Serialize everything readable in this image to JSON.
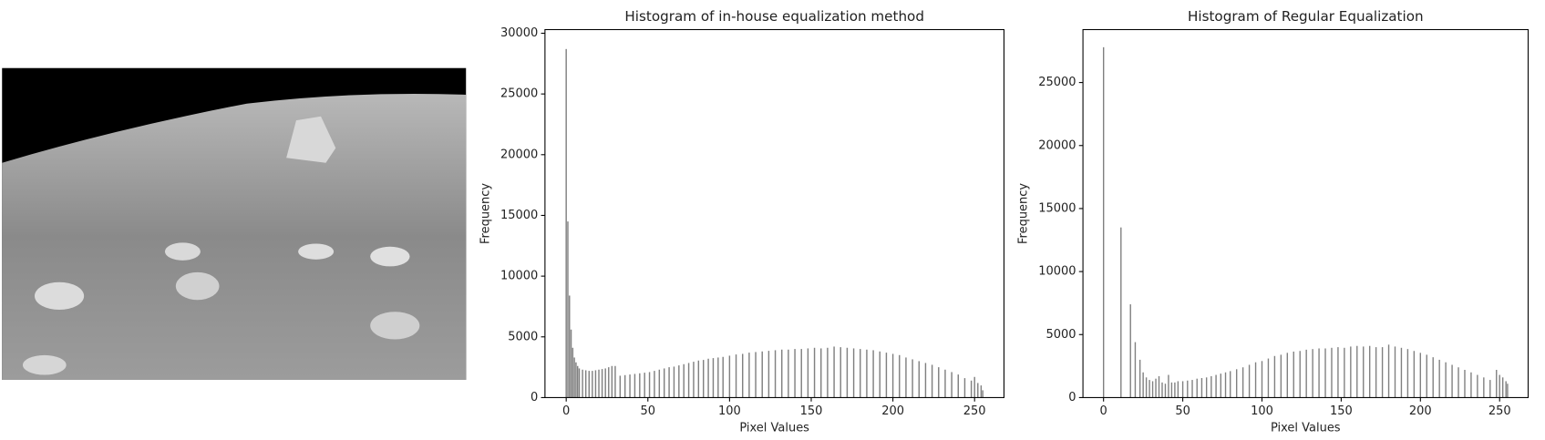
{
  "chart_data": [
    {
      "type": "bar",
      "title": "Histogram of in-house equalization method",
      "x_label": "Pixel Values",
      "y_label": "Frequency",
      "color": "#808080",
      "x": [
        0,
        1,
        2,
        3,
        4,
        5,
        6,
        7,
        8,
        10,
        12,
        14,
        16,
        18,
        20,
        22,
        24,
        26,
        28,
        30,
        33,
        36,
        39,
        42,
        45,
        48,
        51,
        54,
        57,
        60,
        63,
        66,
        69,
        72,
        75,
        78,
        81,
        84,
        87,
        90,
        93,
        96,
        100,
        104,
        108,
        112,
        116,
        120,
        124,
        128,
        132,
        136,
        140,
        144,
        148,
        152,
        156,
        160,
        164,
        168,
        172,
        176,
        180,
        184,
        188,
        192,
        196,
        200,
        204,
        208,
        212,
        216,
        220,
        224,
        228,
        232,
        236,
        240,
        244,
        248,
        250,
        252,
        254,
        255
      ],
      "values": [
        28700,
        14500,
        8400,
        5600,
        4100,
        3300,
        2900,
        2600,
        2400,
        2300,
        2250,
        2200,
        2200,
        2250,
        2300,
        2350,
        2400,
        2500,
        2600,
        2600,
        1800,
        1850,
        1900,
        1950,
        2000,
        2050,
        2100,
        2200,
        2300,
        2400,
        2500,
        2550,
        2650,
        2750,
        2850,
        2950,
        3050,
        3100,
        3200,
        3250,
        3300,
        3350,
        3450,
        3550,
        3600,
        3700,
        3750,
        3800,
        3850,
        3900,
        3950,
        3950,
        4000,
        4000,
        4050,
        4100,
        4050,
        4100,
        4200,
        4150,
        4100,
        4050,
        4000,
        3950,
        3900,
        3800,
        3700,
        3600,
        3500,
        3300,
        3150,
        3000,
        2850,
        2700,
        2500,
        2300,
        2100,
        1900,
        1600,
        1400,
        1700,
        1200,
        1000,
        600
      ],
      "xlim": [
        -13,
        268
      ],
      "ylim": [
        0,
        30300
      ],
      "xticks": [
        0,
        50,
        100,
        150,
        200,
        250
      ],
      "yticks": [
        0,
        5000,
        10000,
        15000,
        20000,
        25000,
        30000
      ]
    },
    {
      "type": "bar",
      "title": "Histogram of Regular Equalization",
      "x_label": "Pixel Values",
      "y_label": "Frequency",
      "color": "#808080",
      "x": [
        0,
        11,
        17,
        20,
        23,
        25,
        27,
        29,
        31,
        33,
        35,
        37,
        39,
        41,
        43,
        45,
        47,
        50,
        53,
        56,
        59,
        62,
        65,
        68,
        71,
        74,
        77,
        80,
        84,
        88,
        92,
        96,
        100,
        104,
        108,
        112,
        116,
        120,
        124,
        128,
        132,
        136,
        140,
        144,
        148,
        152,
        156,
        160,
        164,
        168,
        172,
        176,
        180,
        184,
        188,
        192,
        196,
        200,
        204,
        208,
        212,
        216,
        220,
        224,
        228,
        232,
        236,
        240,
        244,
        248,
        250,
        252,
        254,
        255
      ],
      "values": [
        27800,
        13500,
        7400,
        4400,
        3000,
        2000,
        1600,
        1400,
        1300,
        1500,
        1700,
        1200,
        1100,
        1800,
        1200,
        1200,
        1300,
        1300,
        1350,
        1400,
        1500,
        1550,
        1600,
        1700,
        1800,
        1900,
        2000,
        2100,
        2250,
        2400,
        2600,
        2800,
        2900,
        3100,
        3300,
        3400,
        3550,
        3650,
        3700,
        3800,
        3850,
        3900,
        3900,
        3950,
        4000,
        3950,
        4050,
        4100,
        4050,
        4100,
        4000,
        4000,
        4200,
        4050,
        3950,
        3850,
        3700,
        3550,
        3400,
        3200,
        3000,
        2800,
        2600,
        2400,
        2200,
        2000,
        1800,
        1600,
        1400,
        2200,
        1800,
        1600,
        1300,
        1100
      ],
      "xlim": [
        -13,
        268
      ],
      "ylim": [
        0,
        29200
      ],
      "xticks": [
        0,
        50,
        100,
        150,
        200,
        250
      ],
      "yticks": [
        0,
        5000,
        10000,
        15000,
        20000,
        25000
      ]
    }
  ]
}
